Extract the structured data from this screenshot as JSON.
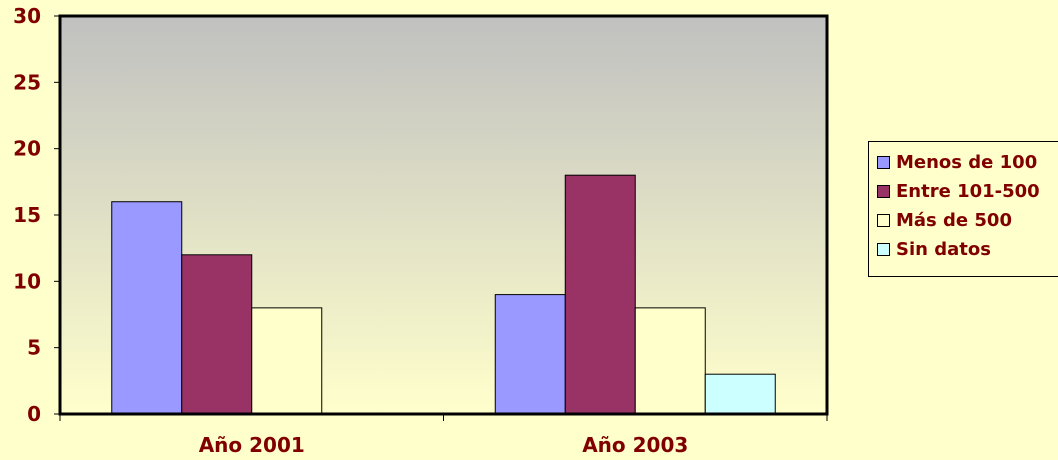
{
  "chart_data": {
    "type": "bar",
    "categories": [
      "Año 2001",
      "Año 2003"
    ],
    "series": [
      {
        "name": "Menos de 100",
        "values": [
          16,
          9
        ],
        "color": "#9999FF"
      },
      {
        "name": "Entre 101-500",
        "values": [
          12,
          18
        ],
        "color": "#993366"
      },
      {
        "name": "Más de 500",
        "values": [
          8,
          8
        ],
        "color": "#FFFFCC"
      },
      {
        "name": "Sin datos",
        "values": [
          0,
          3
        ],
        "color": "#CCFFFF"
      }
    ],
    "ylim": [
      0,
      30
    ],
    "yticks": [
      "0",
      "5",
      "10",
      "15",
      "20",
      "25",
      "30"
    ],
    "grid": false,
    "legend": "right",
    "plot_background": "gradient gray to light yellow",
    "text_color": "#800000"
  }
}
